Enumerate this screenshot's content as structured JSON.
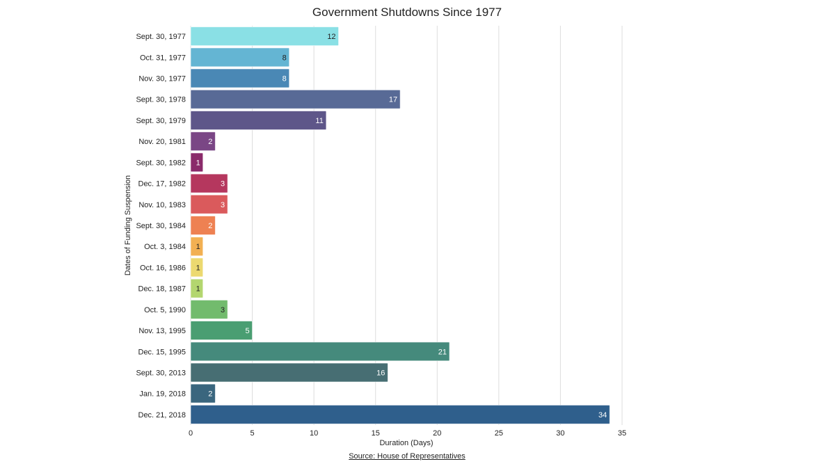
{
  "chart_data": {
    "type": "bar",
    "orientation": "horizontal",
    "title": "Government Shutdowns Since 1977",
    "xlabel": "Duration (Days)",
    "ylabel": "Dates of Funding Suspension",
    "source": "Source: House of Representatives",
    "xlim": [
      0,
      35
    ],
    "xticks": [
      0,
      5,
      10,
      15,
      20,
      25,
      30,
      35
    ],
    "grid": true,
    "categories": [
      "Sept. 30, 1977",
      "Oct. 31, 1977",
      "Nov. 30, 1977",
      "Sept. 30, 1978",
      "Sept. 30, 1979",
      "Nov. 20, 1981",
      "Sept. 30, 1982",
      "Dec. 17, 1982",
      "Nov. 10, 1983",
      "Sept. 30, 1984",
      "Oct. 3, 1984",
      "Oct. 16, 1986",
      "Dec. 18, 1987",
      "Oct. 5, 1990",
      "Nov. 13, 1995",
      "Dec. 15, 1995",
      "Sept. 30, 2013",
      "Jan. 19, 2018",
      "Dec. 21, 2018"
    ],
    "values": [
      12,
      8,
      8,
      17,
      11,
      2,
      1,
      3,
      3,
      2,
      1,
      1,
      1,
      3,
      5,
      21,
      16,
      2,
      34
    ],
    "colors": [
      "#8ae0e5",
      "#64b5d3",
      "#4a88b5",
      "#586a96",
      "#5e5689",
      "#7a4685",
      "#8a2a6a",
      "#b5375e",
      "#da5a5c",
      "#ee8152",
      "#f2b052",
      "#ecd970",
      "#b3d66f",
      "#72bb6d",
      "#4a9e72",
      "#458a7c",
      "#476e73",
      "#3a667e",
      "#2f5f8c"
    ],
    "label_colors": [
      "#222",
      "#222",
      "#fff",
      "#fff",
      "#fff",
      "#fff",
      "#fff",
      "#fff",
      "#fff",
      "#fff",
      "#222",
      "#222",
      "#222",
      "#222",
      "#fff",
      "#fff",
      "#fff",
      "#fff",
      "#fff"
    ]
  }
}
